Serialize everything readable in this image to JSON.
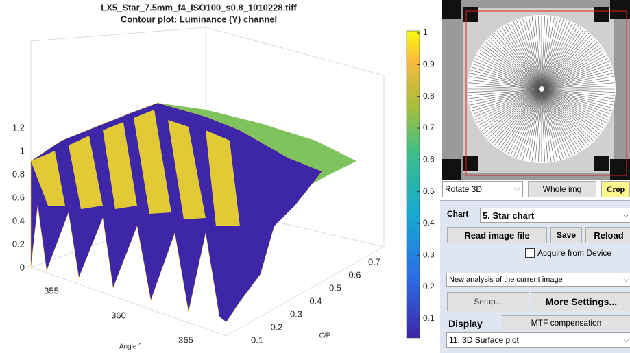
{
  "plot": {
    "title": "LX5_Star_7.5mm_f4_ISO100_s0.8_1010228.tiff",
    "subtitle": "Contour plot:  Luminance (Y) channel",
    "z_ticks": [
      0,
      0.2,
      0.4,
      0.6,
      0.8,
      1,
      1.2
    ],
    "angle_ticks": [
      355,
      360,
      365
    ],
    "angle_label": "Angle °",
    "cp_ticks": [
      0.1,
      0.2,
      0.3,
      0.4,
      0.5,
      0.6,
      0.7
    ],
    "cp_label": "C/P",
    "colorbar_ticks": [
      0.1,
      0.2,
      0.3,
      0.4,
      0.5,
      0.6,
      0.7,
      0.8,
      0.9,
      1
    ]
  },
  "controls": {
    "view_select": "Rotate 3D",
    "whole_img": "Whole img",
    "crop": "Crop",
    "chart_label": "Chart",
    "chart_select": "5. Star chart",
    "read_image": "Read image file",
    "save": "Save",
    "reload": "Reload",
    "acquire": "Acquire from Device",
    "analysis_select": "New analysis of the current image",
    "setup": "Setup...",
    "more_settings": "More Settings...",
    "display_label": "Display",
    "mtf_compensation": "MTF compensation",
    "display_select": "11. 3D Surface plot"
  }
}
